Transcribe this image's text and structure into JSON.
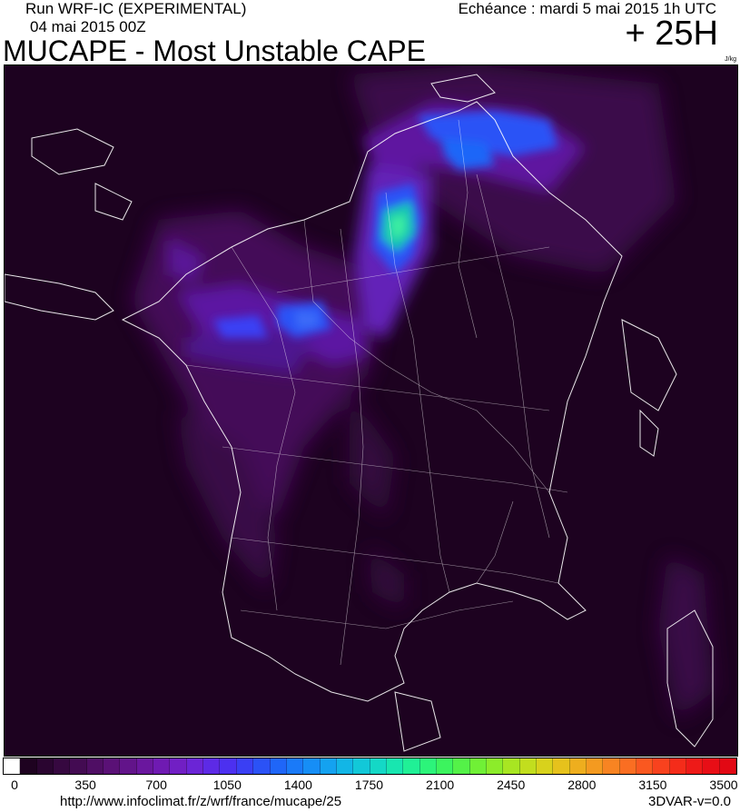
{
  "header": {
    "run_label": "Run WRF-IC (EXPERIMENTAL)",
    "run_date": "04 mai 2015 00Z",
    "title": "MUCAPE - Most Unstable CAPE",
    "echeance": "Echéance : mardi 5 mai 2015 1h UTC",
    "lead_time": "+ 25H",
    "unit": "J/kg"
  },
  "legend": {
    "tick_labels": [
      "0",
      "350",
      "700",
      "1050",
      "1400",
      "1750",
      "2100",
      "2450",
      "2800",
      "3150",
      "3500"
    ],
    "colors": [
      "#ffffff",
      "#1e0220",
      "#2a0530",
      "#360840",
      "#430b52",
      "#4f0e64",
      "#5a1176",
      "#62148a",
      "#6a179e",
      "#6f1ab2",
      "#711fc4",
      "#6b25d6",
      "#5d2ae6",
      "#4c30f0",
      "#3a3ff4",
      "#2b52f6",
      "#1f66f8",
      "#1a7af8",
      "#168ef6",
      "#14a2f0",
      "#12b6e6",
      "#12c8d8",
      "#14d8c6",
      "#18e6b0",
      "#20f096",
      "#2cf47a",
      "#3cf45e",
      "#54f248",
      "#70f036",
      "#8cec2a",
      "#a8e622",
      "#c2de1e",
      "#d8d21c",
      "#e6c21c",
      "#eeae1e",
      "#f49a20",
      "#f88422",
      "#fa6e22",
      "#fa5820",
      "#f8421e",
      "#f42c1a",
      "#ee1a18",
      "#e80e16",
      "#e20814"
    ]
  },
  "footer": {
    "url": "http://www.infoclimat.fr/z/wrf/france/mucape/25",
    "version": "3DVAR-v=0.0"
  }
}
